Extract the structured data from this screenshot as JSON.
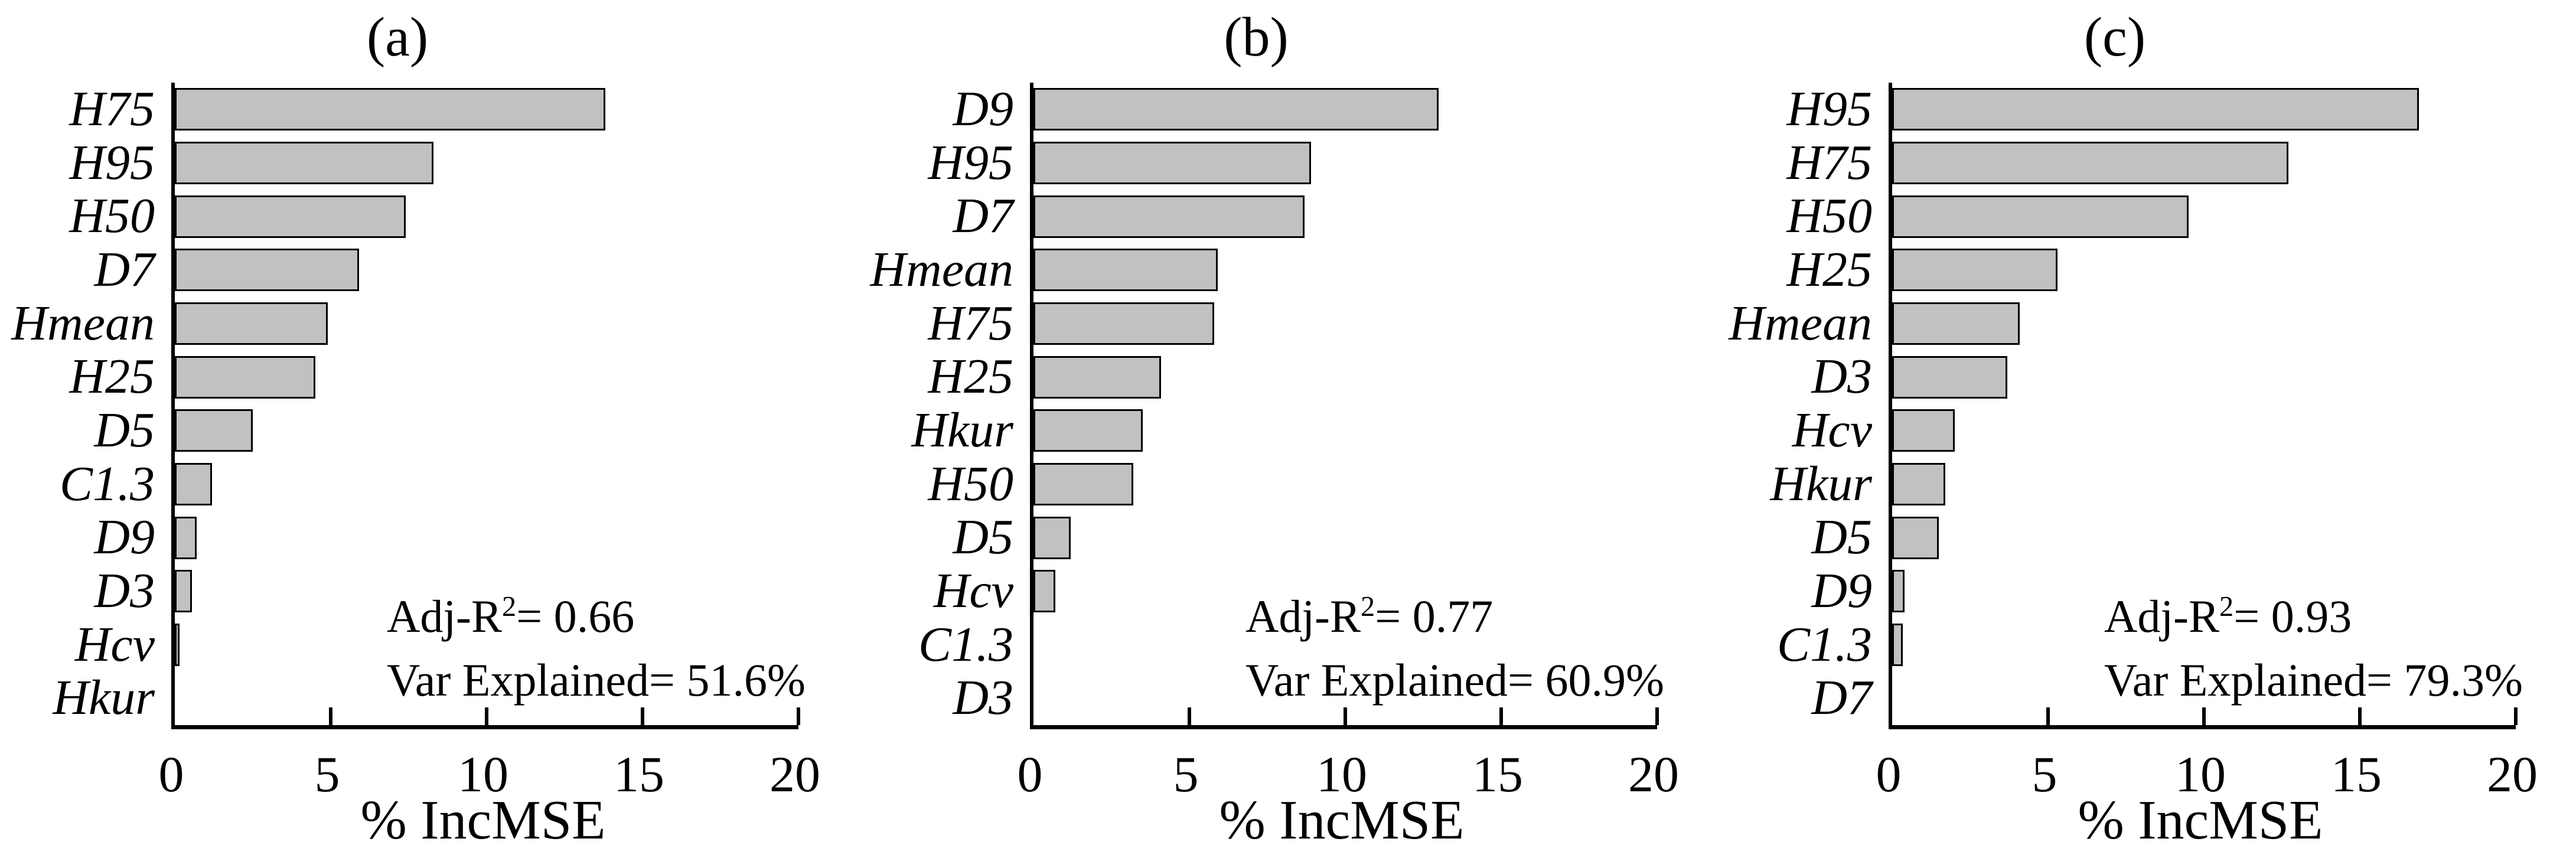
{
  "figure": {
    "background": "#ffffff",
    "bar_fill": "#c1c1c1",
    "bar_border": "#000000",
    "axis_color": "#000000",
    "text_color": "#000000"
  },
  "chart_data": [
    {
      "type": "bar",
      "orientation": "horizontal",
      "panel_label": "(a)",
      "xlabel": "% IncMSE",
      "xlim": [
        0,
        20
      ],
      "xticks": [
        0,
        5,
        10,
        15,
        20
      ],
      "grid": false,
      "categories": [
        "H75",
        "H95",
        "H50",
        "D7",
        "Hmean",
        "H25",
        "D5",
        "C1.3",
        "D9",
        "D3",
        "Hcv",
        "Hkur"
      ],
      "values": [
        13.8,
        8.3,
        7.4,
        5.9,
        4.9,
        4.5,
        2.5,
        1.2,
        0.7,
        0.55,
        0.15,
        0
      ],
      "annotation": {
        "stat_prefix": "Adj-R",
        "stat_sup": "2",
        "stat_rest": "= 0.66",
        "var_explained": "Var Explained= 51.6%"
      }
    },
    {
      "type": "bar",
      "orientation": "horizontal",
      "panel_label": "(b)",
      "xlabel": "% IncMSE",
      "xlim": [
        0,
        20
      ],
      "xticks": [
        0,
        5,
        10,
        15,
        20
      ],
      "grid": false,
      "categories": [
        "D9",
        "H95",
        "D7",
        "Hmean",
        "H75",
        "H25",
        "Hkur",
        "H50",
        "D5",
        "Hcv",
        "C1.3",
        "D3"
      ],
      "values": [
        13.0,
        8.9,
        8.7,
        5.9,
        5.8,
        4.1,
        3.5,
        3.2,
        1.2,
        0.7,
        0,
        0
      ],
      "annotation": {
        "stat_prefix": "Adj-R",
        "stat_sup": "2",
        "stat_rest": "= 0.77",
        "var_explained": "Var Explained= 60.9%"
      }
    },
    {
      "type": "bar",
      "orientation": "horizontal",
      "panel_label": "(c)",
      "xlabel": "% IncMSE",
      "xlim": [
        0,
        20
      ],
      "xticks": [
        0,
        5,
        10,
        15,
        20
      ],
      "grid": false,
      "categories": [
        "H95",
        "H75",
        "H50",
        "H25",
        "Hmean",
        "D3",
        "Hcv",
        "Hkur",
        "D5",
        "D9",
        "C1.3",
        "D7"
      ],
      "values": [
        16.9,
        12.7,
        9.5,
        5.3,
        4.1,
        3.7,
        2.0,
        1.7,
        1.5,
        0.4,
        0.35,
        0
      ],
      "annotation": {
        "stat_prefix": "Adj-R",
        "stat_sup": "2",
        "stat_rest": "= 0.93",
        "var_explained": "Var Explained= 79.3%"
      }
    }
  ]
}
